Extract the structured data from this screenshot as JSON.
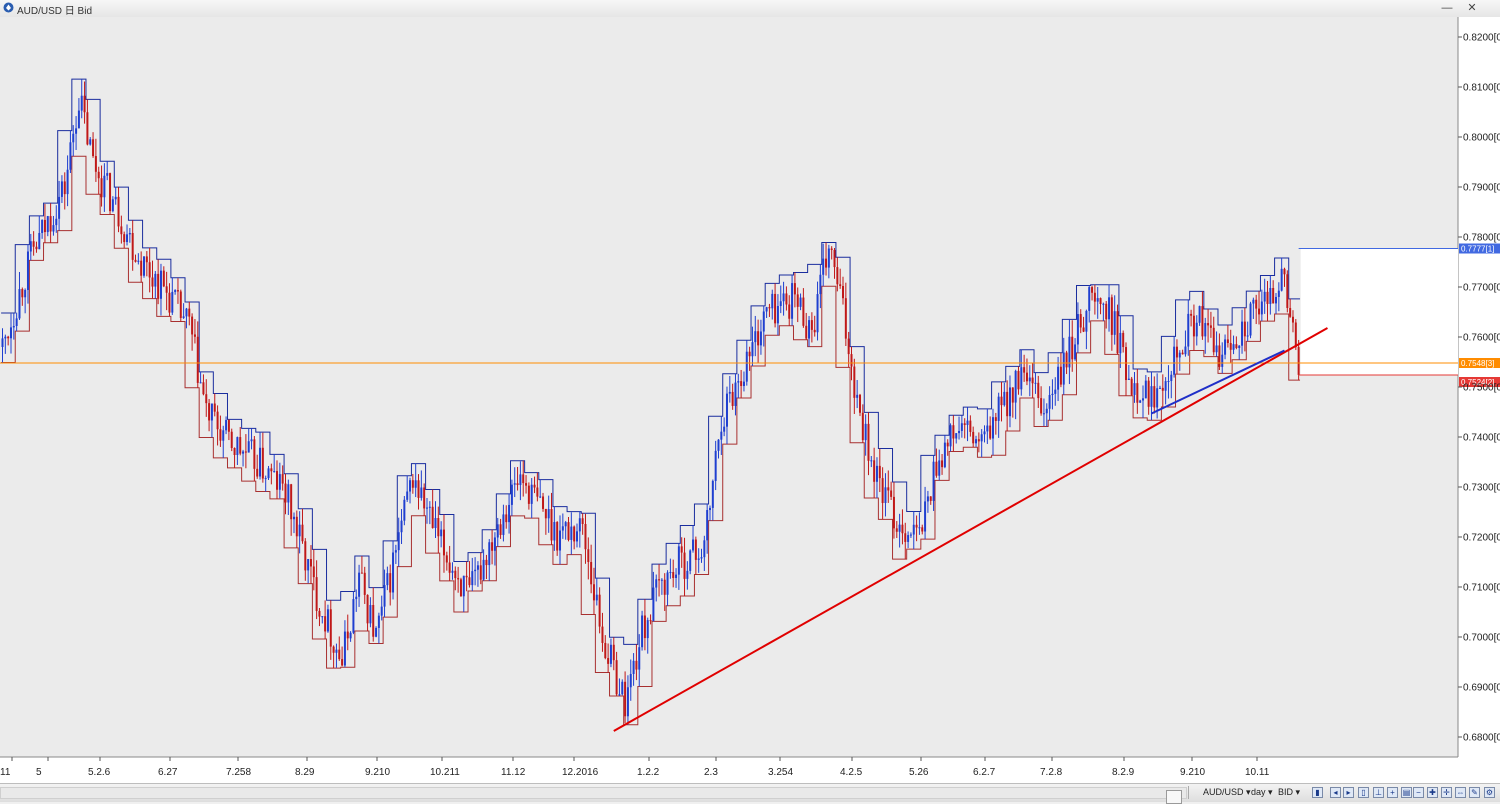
{
  "window": {
    "title": "AUD/USD 日 Bid",
    "buttons": {
      "minimize": "—",
      "close": "✕"
    }
  },
  "chart_data": {
    "type": "candlestick",
    "symbol": "AUD/USD",
    "timeframe": "day",
    "side": "BID",
    "ylim": [
      0.676,
      0.824
    ],
    "y_ticks": [
      {
        "value": 0.82,
        "label": "0.8200[0"
      },
      {
        "value": 0.81,
        "label": "0.8100[0"
      },
      {
        "value": 0.8,
        "label": "0.8000[0"
      },
      {
        "value": 0.79,
        "label": "0.7900[0"
      },
      {
        "value": 0.78,
        "label": "0.7800[0"
      },
      {
        "value": 0.77,
        "label": "0.7700[0"
      },
      {
        "value": 0.76,
        "label": "0.7600[0"
      },
      {
        "value": 0.75,
        "label": "0.7500[0"
      },
      {
        "value": 0.74,
        "label": "0.7400[0"
      },
      {
        "value": 0.73,
        "label": "0.7300[0"
      },
      {
        "value": 0.72,
        "label": "0.7200[0"
      },
      {
        "value": 0.71,
        "label": "0.7100[0"
      },
      {
        "value": 0.7,
        "label": "0.7000[0"
      },
      {
        "value": 0.69,
        "label": "0.6900[0"
      },
      {
        "value": 0.68,
        "label": "0.6800[0"
      }
    ],
    "x_ticks": [
      "11",
      "5",
      "5.2.6",
      "6.27",
      "7.258",
      "8.29",
      "9.210",
      "10.211",
      "11.12",
      "12.2016",
      "1.2.2",
      "2.3",
      "3.254",
      "4.2.5",
      "5.26",
      "6.2.7",
      "7.2.8",
      "8.2.9",
      "9.210",
      "10.11"
    ],
    "price_levels": [
      {
        "name": "upper",
        "value": 0.7777,
        "label": "0.7777[1]",
        "color": "#4169e1"
      },
      {
        "name": "current",
        "value": 0.7548,
        "label": "0.7548[3]",
        "color": "#ff8c00"
      },
      {
        "name": "lower",
        "value": 0.7524,
        "label": "0.7524[2]",
        "color": "#e53935"
      }
    ],
    "trendlines": [
      {
        "name": "main-uptrend",
        "color": "#e00000",
        "from": {
          "index": 216,
          "price": 0.6812
        },
        "to": {
          "index": 459,
          "price": 0.7598
        }
      },
      {
        "name": "short-uptrend",
        "color": "#1f2fc8",
        "from": {
          "index": 406,
          "price": 0.7447
        },
        "to": {
          "index": 453,
          "price": 0.7573
        }
      }
    ],
    "bull_color": "#1f3fd0",
    "bear_color": "#c01818",
    "envelope_upper_color": "#1a2d9e",
    "envelope_lower_color": "#a83030"
  },
  "statusbar": {
    "symbol": "AUD/USD ▾",
    "timeframe": "day ▾",
    "side": "BID ▾"
  }
}
